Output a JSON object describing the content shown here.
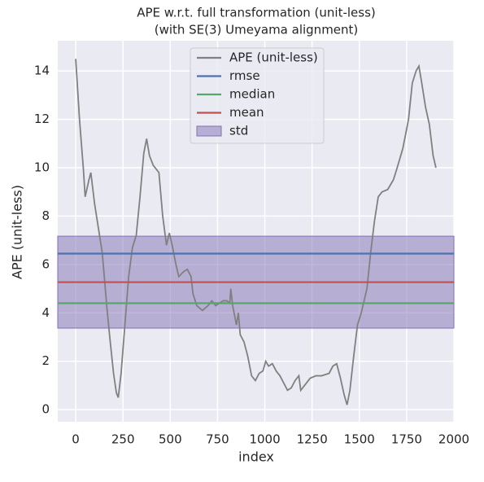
{
  "chart_data": {
    "type": "line",
    "title": "APE w.r.t. full transformation (unit-less)",
    "subtitle": "(with SE(3) Umeyama alignment)",
    "x_label": "index",
    "y_label": "APE (unit-less)",
    "xlim": [
      -95,
      2000
    ],
    "ylim": [
      -0.5,
      15.25
    ],
    "xticks": [
      0,
      250,
      500,
      750,
      1000,
      1250,
      1500,
      1750,
      2000
    ],
    "yticks": [
      0,
      2,
      4,
      6,
      8,
      10,
      12,
      14
    ],
    "grid": true,
    "legend": "upper center",
    "x": [
      0,
      20,
      40,
      50,
      70,
      80,
      100,
      120,
      140,
      150,
      165,
      180,
      200,
      215,
      225,
      240,
      260,
      280,
      300,
      320,
      340,
      360,
      375,
      390,
      410,
      440,
      460,
      480,
      495,
      510,
      530,
      545,
      570,
      590,
      610,
      620,
      640,
      670,
      700,
      720,
      740,
      760,
      780,
      800,
      815,
      820,
      830,
      850,
      860,
      870,
      890,
      910,
      930,
      950,
      970,
      990,
      1005,
      1020,
      1040,
      1060,
      1080,
      1100,
      1120,
      1140,
      1160,
      1180,
      1190,
      1210,
      1240,
      1270,
      1300,
      1340,
      1360,
      1380,
      1400,
      1420,
      1435,
      1450,
      1470,
      1490,
      1510,
      1540,
      1560,
      1580,
      1600,
      1620,
      1650,
      1680,
      1700,
      1730,
      1760,
      1780,
      1800,
      1815,
      1830,
      1850,
      1870,
      1890,
      1905
    ],
    "series": [
      {
        "name": "APE (unit-less)",
        "color": "#808080",
        "values": [
          14.5,
          12,
          10,
          8.8,
          9.5,
          9.8,
          8.5,
          7.5,
          6.5,
          5.6,
          4.2,
          3,
          1.5,
          0.7,
          0.5,
          1.5,
          3.5,
          5.5,
          6.7,
          7.2,
          8.8,
          10.6,
          11.2,
          10.5,
          10.1,
          9.8,
          8,
          6.8,
          7.3,
          6.8,
          6,
          5.5,
          5.7,
          5.8,
          5.5,
          4.8,
          4.3,
          4.1,
          4.3,
          4.5,
          4.3,
          4.4,
          4.5,
          4.5,
          4.4,
          5.0,
          4.3,
          3.5,
          4.0,
          3.1,
          2.8,
          2.2,
          1.4,
          1.2,
          1.5,
          1.6,
          2.0,
          1.8,
          1.9,
          1.6,
          1.4,
          1.1,
          0.8,
          0.9,
          1.2,
          1.4,
          0.8,
          1.0,
          1.3,
          1.4,
          1.4,
          1.5,
          1.8,
          1.9,
          1.3,
          0.6,
          0.2,
          0.8,
          2.2,
          3.5,
          4.0,
          5,
          6.5,
          7.8,
          8.8,
          9.0,
          9.1,
          9.5,
          10,
          10.8,
          12,
          13.5,
          14,
          14.2,
          13.5,
          12.5,
          11.8,
          10.5,
          10
        ]
      }
    ],
    "reference_lines": [
      {
        "name": "rmse",
        "color": "#4c72b0",
        "value": 6.45
      },
      {
        "name": "median",
        "color": "#55a868",
        "value": 4.4
      },
      {
        "name": "mean",
        "color": "#c44e52",
        "value": 5.27
      }
    ],
    "std_band": {
      "name": "std",
      "color": "#8172b3",
      "value": 1.9
    }
  }
}
